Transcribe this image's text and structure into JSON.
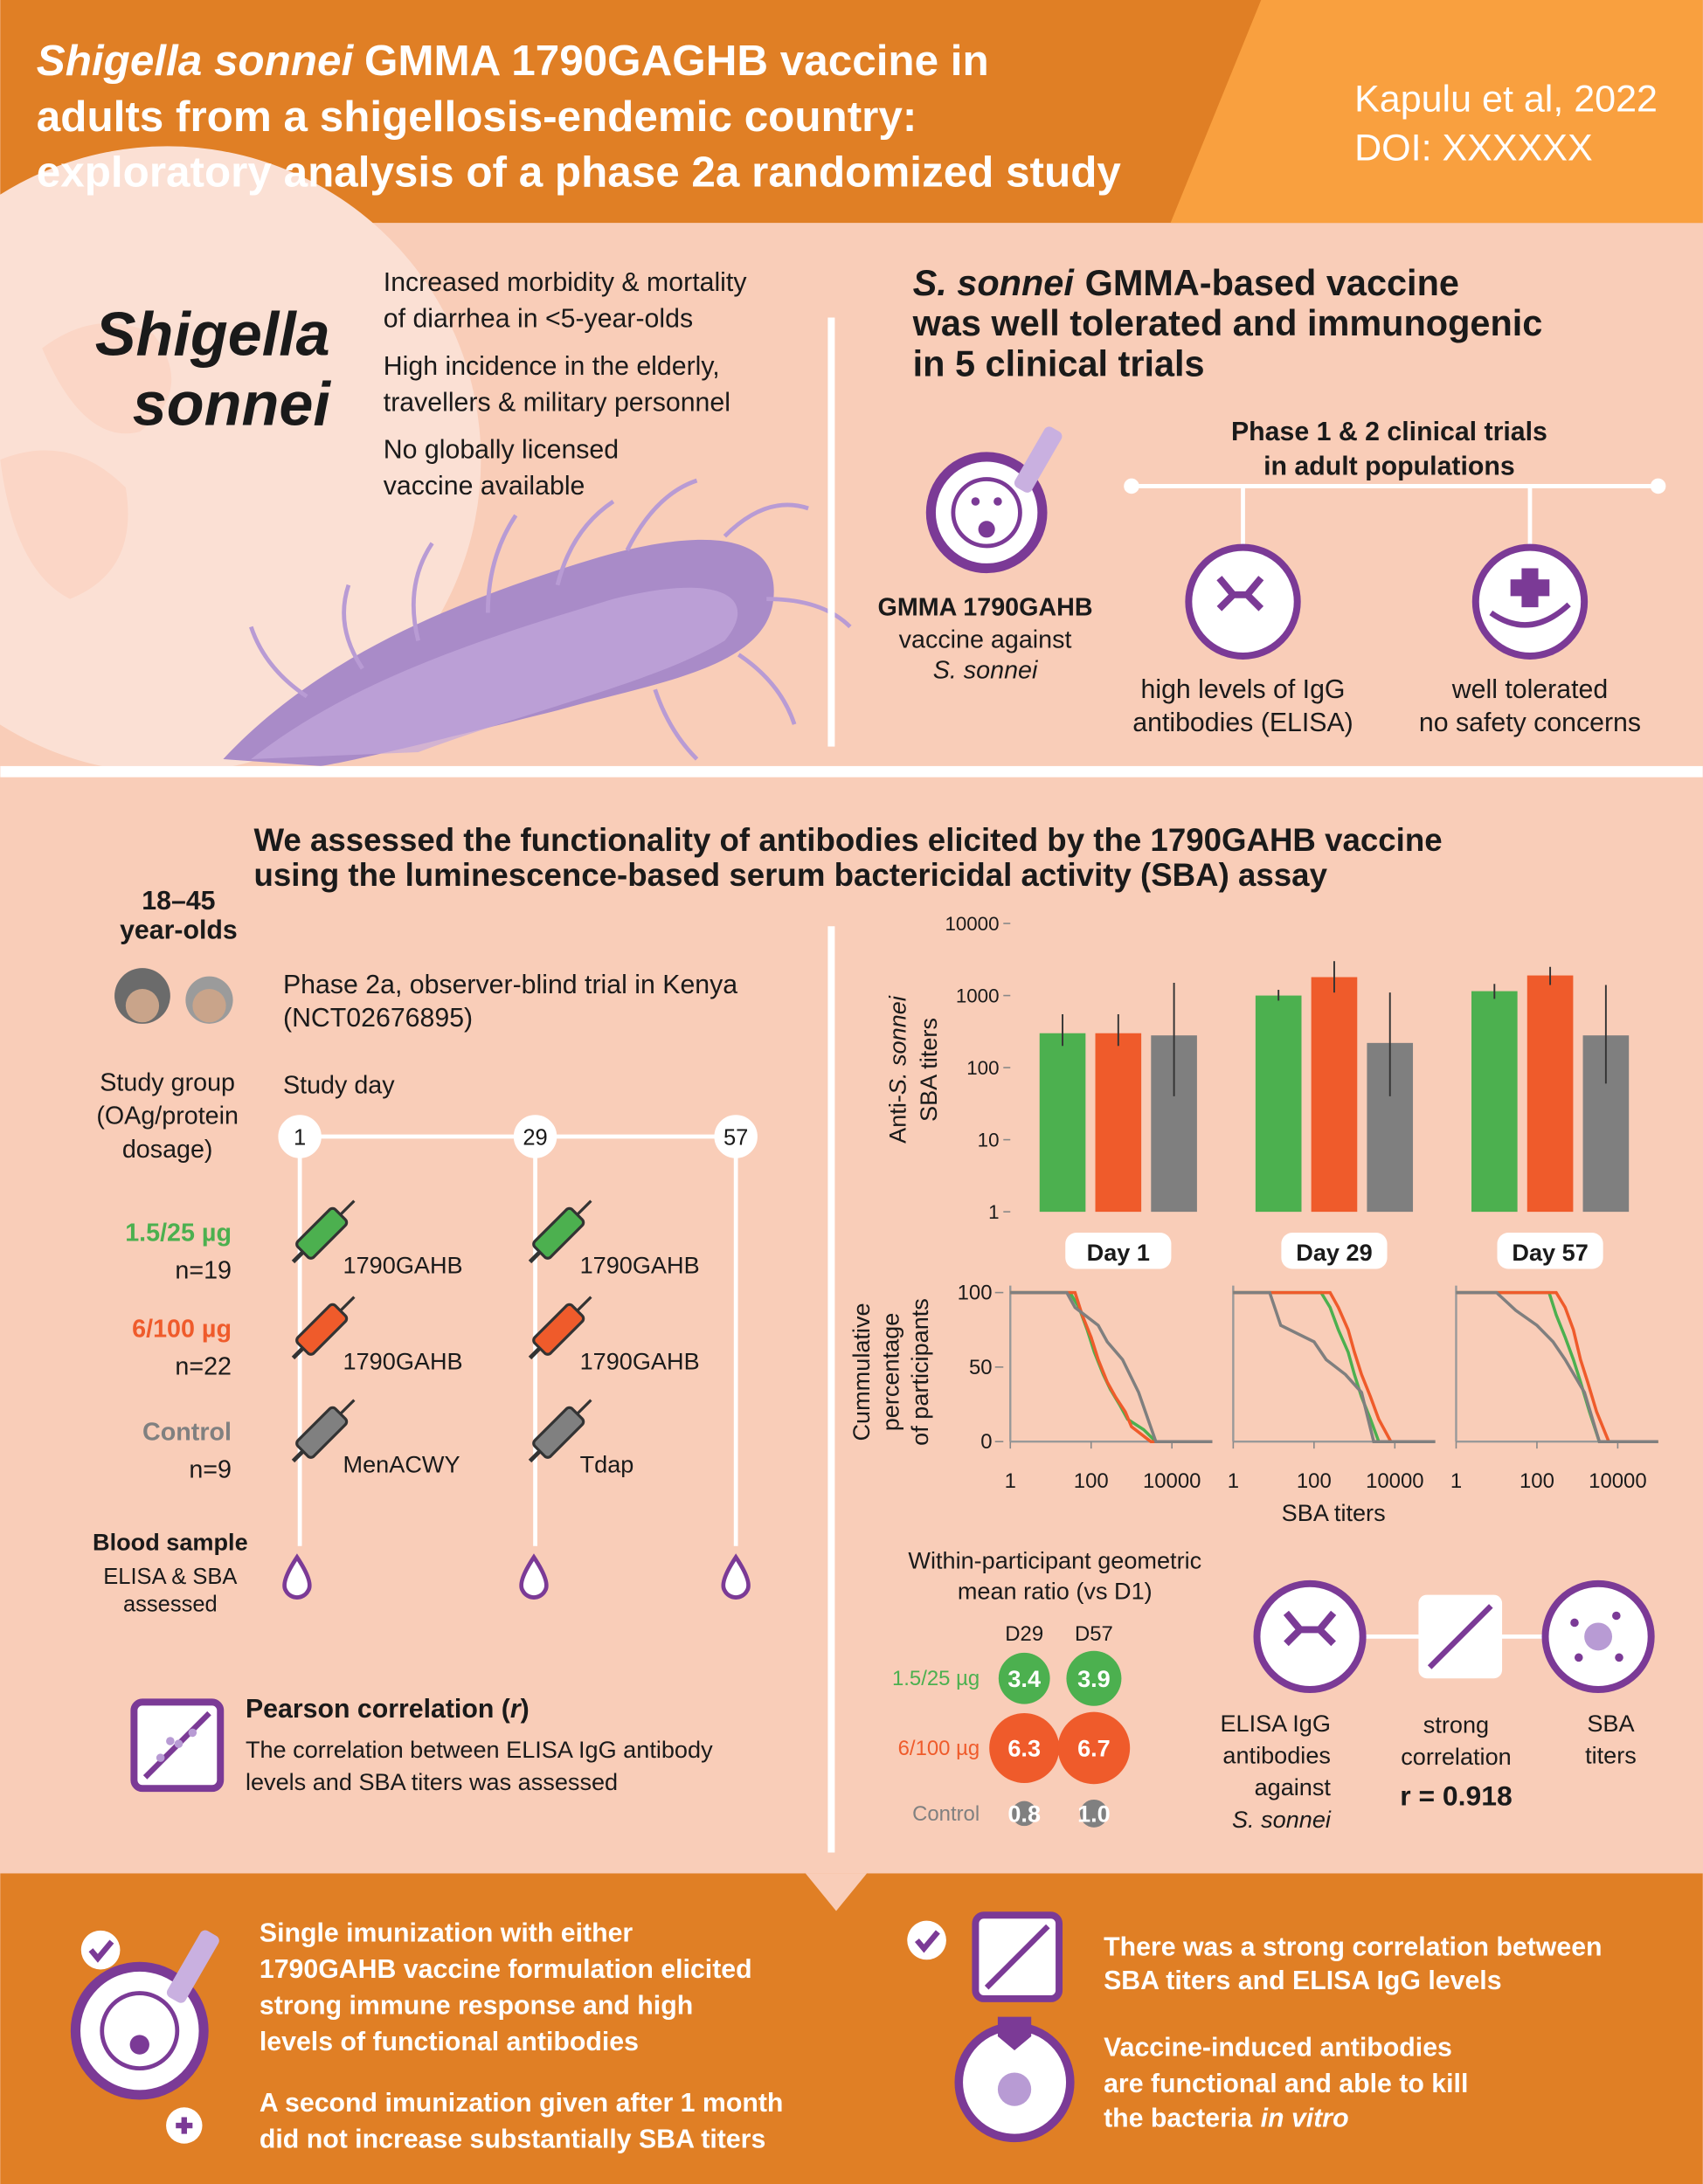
{
  "header": {
    "title_italic": "Shigella sonnei",
    "title_lines": [
      "GMMA 1790GAGHB vaccine in",
      "adults from a shigellosis-endemic country:",
      "exploratory analysis of a phase 2a randomized study"
    ],
    "citation": [
      "Kapulu et al, 2022",
      "DOI: XXXXXX"
    ]
  },
  "intro": {
    "organism": [
      "Shigella",
      "sonnei"
    ],
    "facts": [
      [
        "Increased morbidity & mortality",
        "of diarrhea in <5-year-olds"
      ],
      [
        "High incidence in the elderly,",
        "travellers & military personnel"
      ],
      [
        "No globally licensed",
        "vaccine available"
      ]
    ]
  },
  "prior": {
    "heading_italic": "S. sonnei",
    "heading_lines": [
      "GMMA-based vaccine",
      "was well tolerated and immunogenic",
      "in 5 clinical trials"
    ],
    "vaccine": {
      "name": "GMMA 1790GAHB",
      "line": "vaccine against",
      "organism": "S. sonnei"
    },
    "trials": [
      "Phase 1 & 2 clinical trials",
      "in adult populations"
    ],
    "outcomes": [
      [
        "high levels of IgG",
        "antibodies (ELISA)"
      ],
      [
        "well tolerated",
        "no safety concerns"
      ]
    ]
  },
  "study": {
    "heading": [
      "We assessed the functionality of antibodies elicited by the 1790GAHB vaccine",
      "using the luminescence-based serum bactericidal activity (SBA) assay"
    ],
    "age": [
      "18–45",
      "year-olds"
    ],
    "design": [
      "Phase 2a, observer-blind trial in Kenya",
      "(NCT02676895)"
    ],
    "group_header": [
      "Study group",
      "(OAg/protein",
      "dosage)"
    ],
    "day_header": "Study day",
    "days": [
      1,
      29,
      57
    ],
    "groups": [
      {
        "dose": "1.5/25 µg",
        "n": "n=19",
        "color": "#4cb04f",
        "vaccines": [
          "1790GAHB",
          "1790GAHB"
        ]
      },
      {
        "dose": "6/100 µg",
        "n": "n=22",
        "color": "#ef5b2b",
        "vaccines": [
          "1790GAHB",
          "1790GAHB"
        ]
      },
      {
        "dose": "Control",
        "n": "n=9",
        "color": "#808080",
        "vaccines": [
          "MenACWY",
          "Tdap"
        ]
      }
    ],
    "blood": [
      "Blood sample",
      "ELISA & SBA",
      "assessed"
    ],
    "pearson": {
      "title": [
        "Pearson correlation (",
        "r",
        ")"
      ],
      "text": [
        "The correlation between ELISA IgG antibody",
        "levels and SBA titers was assessed"
      ]
    }
  },
  "correlation": {
    "elisa": [
      "ELISA IgG",
      "antibodies",
      "against",
      "S. sonnei"
    ],
    "middle": [
      "strong",
      "correlation"
    ],
    "r": "r = 0.918",
    "sba": [
      "SBA",
      "titers"
    ]
  },
  "conclusions": {
    "left": [
      [
        "Single imunization with either",
        "1790GAHB vaccine formulation elicited",
        "strong immune response and high",
        "levels of functional antibodies"
      ],
      [
        "A second imunization given after 1 month",
        "did not increase substantially SBA titers"
      ]
    ],
    "right": [
      [
        "There was a strong correlation between",
        "SBA titers and ELISA IgG levels"
      ],
      [
        "Vaccine-induced antibodies",
        "are functional and able to kill",
        "the bacteria"
      ]
    ],
    "right_italic": "in vitro"
  },
  "chart_data": [
    {
      "type": "bar",
      "y_label": [
        [
          "Anti-",
          "S. sonnei"
        ],
        "SBA titers"
      ],
      "yscale": "log",
      "ylim": [
        1,
        10000
      ],
      "yticks": [
        1,
        10,
        100,
        1000,
        10000
      ],
      "categories": [
        "Day 1",
        "Day 29",
        "Day 57"
      ],
      "series": [
        {
          "color": "#4cb04f",
          "values": [
            300,
            1000,
            1150
          ],
          "ci_low": [
            200,
            850,
            900
          ],
          "ci_high": [
            550,
            1200,
            1450
          ]
        },
        {
          "color": "#ef5b2b",
          "values": [
            300,
            1800,
            1900
          ],
          "ci_low": [
            200,
            1100,
            1400
          ],
          "ci_high": [
            550,
            3000,
            2500
          ]
        },
        {
          "color": "#7f7f7f",
          "values": [
            280,
            220,
            280
          ],
          "ci_low": [
            40,
            40,
            60
          ],
          "ci_high": [
            1500,
            1100,
            1400
          ]
        }
      ]
    },
    {
      "type": "line",
      "x_label": "SBA titers",
      "y_label": [
        "Cummulative",
        "percentage",
        "of participants"
      ],
      "xscale": "log",
      "xlim": [
        1,
        100000
      ],
      "ylim": [
        0,
        100
      ],
      "xticks": [
        1,
        100,
        10000
      ],
      "yticks": [
        0,
        50,
        100
      ],
      "panels": [
        {
          "series": [
            {
              "color": "#4cb04f",
              "x": [
                1,
                30,
                50,
                80,
                120,
                200,
                300,
                500,
                800,
                2000,
                4000,
                100000
              ],
              "values": [
                100,
                100,
                90,
                75,
                60,
                45,
                35,
                25,
                15,
                8,
                0,
                0
              ]
            },
            {
              "color": "#ef5b2b",
              "x": [
                1,
                40,
                60,
                100,
                150,
                250,
                400,
                700,
                1000,
                3000,
                100000
              ],
              "values": [
                100,
                100,
                85,
                70,
                55,
                40,
                30,
                20,
                10,
                0,
                0
              ]
            },
            {
              "color": "#7f7f7f",
              "x": [
                1,
                25,
                40,
                150,
                250,
                600,
                1500,
                4000,
                100000
              ],
              "values": [
                100,
                100,
                90,
                78,
                67,
                55,
                33,
                0,
                0
              ]
            }
          ]
        },
        {
          "series": [
            {
              "color": "#4cb04f",
              "x": [
                1,
                150,
                250,
                400,
                700,
                1000,
                1500,
                2500,
                4000,
                100000
              ],
              "values": [
                100,
                100,
                90,
                75,
                60,
                45,
                30,
                15,
                0,
                0
              ]
            },
            {
              "color": "#ef5b2b",
              "x": [
                1,
                250,
                400,
                700,
                1000,
                1500,
                2500,
                4000,
                8000,
                100000
              ],
              "values": [
                100,
                100,
                90,
                75,
                60,
                45,
                30,
                15,
                0,
                0
              ]
            },
            {
              "color": "#7f7f7f",
              "x": [
                1,
                8,
                15,
                100,
                200,
                600,
                1500,
                3000,
                100000
              ],
              "values": [
                100,
                100,
                78,
                67,
                55,
                45,
                33,
                0,
                0
              ]
            }
          ]
        },
        {
          "series": [
            {
              "color": "#4cb04f",
              "x": [
                1,
                200,
                300,
                500,
                800,
                1200,
                2000,
                3500,
                100000
              ],
              "values": [
                100,
                100,
                85,
                70,
                55,
                40,
                20,
                0,
                0
              ]
            },
            {
              "color": "#ef5b2b",
              "x": [
                1,
                300,
                500,
                800,
                1200,
                1800,
                3000,
                6000,
                100000
              ],
              "values": [
                100,
                100,
                90,
                75,
                55,
                40,
                20,
                0,
                0
              ]
            },
            {
              "color": "#7f7f7f",
              "x": [
                1,
                10,
                30,
                100,
                250,
                500,
                1500,
                3500,
                100000
              ],
              "values": [
                100,
                100,
                88,
                78,
                67,
                55,
                33,
                0,
                0
              ]
            }
          ]
        }
      ]
    },
    {
      "type": "bubble",
      "title": [
        "Within-participant geometric",
        "mean ratio (vs D1)"
      ],
      "columns": [
        "D29",
        "D57"
      ],
      "series": [
        {
          "name": "1.5/25 µg",
          "color": "#4cb04f",
          "values": [
            3.4,
            3.9
          ],
          "value_labels": [
            "3.4",
            "3.9"
          ]
        },
        {
          "name": "6/100 µg",
          "color": "#ef5b2b",
          "values": [
            6.3,
            6.7
          ],
          "value_labels": [
            "6.3",
            "6.7"
          ]
        },
        {
          "name": "Control",
          "color": "#808080",
          "values": [
            0.8,
            1.0
          ],
          "value_labels": [
            "0.8",
            "1.0"
          ]
        }
      ]
    }
  ]
}
